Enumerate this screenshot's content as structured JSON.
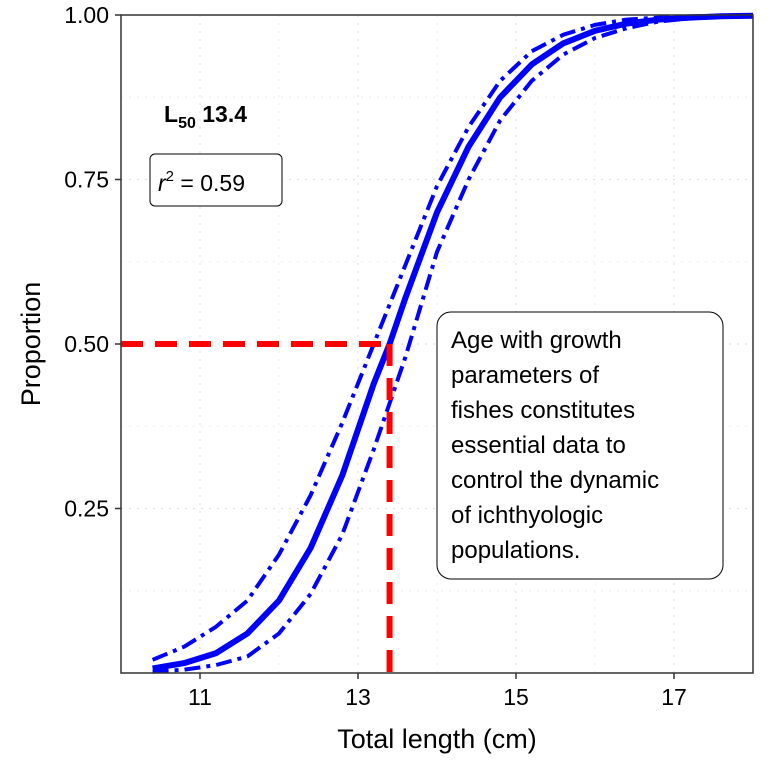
{
  "chart_data": {
    "type": "line",
    "title": "",
    "xlabel": "Total length (cm)",
    "ylabel": "Proportion",
    "xlim": [
      10,
      18
    ],
    "ylim": [
      0,
      1
    ],
    "x_ticks": [
      11,
      13,
      15,
      17
    ],
    "x_tick_labels": [
      "11",
      "13",
      "15",
      "17"
    ],
    "y_ticks": [
      0.25,
      0.5,
      0.75,
      1.0
    ],
    "y_tick_labels": [
      "0.25",
      "0.50",
      "0.75",
      "1.00"
    ],
    "grid": true,
    "colors": {
      "curves": "#0000ff",
      "reference": "#ff0000"
    },
    "series": [
      {
        "style": "solid",
        "x": [
          10.4,
          10.8,
          11.2,
          11.6,
          12.0,
          12.4,
          12.8,
          13.2,
          13.4,
          13.6,
          14.0,
          14.4,
          14.8,
          15.2,
          15.6,
          16.0,
          16.4,
          16.8,
          17.2,
          17.6,
          18.0
        ],
        "y": [
          0.007,
          0.015,
          0.03,
          0.06,
          0.11,
          0.19,
          0.3,
          0.44,
          0.5,
          0.57,
          0.7,
          0.8,
          0.875,
          0.925,
          0.957,
          0.976,
          0.987,
          0.993,
          0.996,
          0.998,
          0.999
        ]
      },
      {
        "style": "dash-dot",
        "x": [
          10.4,
          10.8,
          11.2,
          11.6,
          12.0,
          12.4,
          12.8,
          13.2,
          13.6,
          14.0,
          14.4,
          14.8,
          15.2,
          15.6,
          16.0,
          16.4,
          16.8,
          17.2,
          17.6,
          18.0
        ],
        "y": [
          0.02,
          0.04,
          0.07,
          0.11,
          0.18,
          0.27,
          0.38,
          0.5,
          0.62,
          0.74,
          0.83,
          0.9,
          0.945,
          0.97,
          0.985,
          0.993,
          0.996,
          0.998,
          0.999,
          1.0
        ]
      },
      {
        "style": "dash-dot",
        "x": [
          10.4,
          10.8,
          11.2,
          11.6,
          12.0,
          12.4,
          12.8,
          13.2,
          13.6,
          14.0,
          14.4,
          14.8,
          15.2,
          15.6,
          16.0,
          16.4,
          16.8,
          17.2,
          17.6,
          18.0
        ],
        "y": [
          0.002,
          0.005,
          0.012,
          0.025,
          0.06,
          0.12,
          0.21,
          0.34,
          0.48,
          0.64,
          0.75,
          0.84,
          0.9,
          0.94,
          0.965,
          0.98,
          0.99,
          0.995,
          0.997,
          0.999
        ]
      }
    ],
    "reference_lines": {
      "x": 13.4,
      "y": 0.5,
      "style": "dashed"
    },
    "annotations": {
      "l50_label": "L",
      "l50_sub": "50",
      "l50_value": " 13.4",
      "r2_symbol": "r",
      "r2_exp": "2",
      "r2_value": " = 0.59",
      "note_lines": [
        "Age with growth",
        "parameters of",
        "fishes constitutes",
        "essential data to",
        "control the dynamic",
        "of ichthyologic",
        "populations."
      ]
    }
  }
}
